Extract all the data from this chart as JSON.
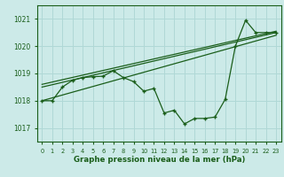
{
  "title": "Graphe pression niveau de la mer (hPa)",
  "bg_color": "#cceae8",
  "grid_color": "#b0d8d6",
  "line_color": "#1a5e1a",
  "xlim": [
    -0.5,
    23.5
  ],
  "ylim": [
    1016.5,
    1021.5
  ],
  "yticks": [
    1017,
    1018,
    1019,
    1020,
    1021
  ],
  "xticks": [
    0,
    1,
    2,
    3,
    4,
    5,
    6,
    7,
    8,
    9,
    10,
    11,
    12,
    13,
    14,
    15,
    16,
    17,
    18,
    19,
    20,
    21,
    22,
    23
  ],
  "series1_x": [
    0,
    1,
    2,
    3,
    4,
    5,
    6,
    7,
    8,
    9,
    10,
    11,
    12,
    13,
    14,
    15,
    16,
    17,
    18,
    19,
    20,
    21,
    22,
    23
  ],
  "series1_y": [
    1018.0,
    1018.0,
    1018.5,
    1018.75,
    1018.85,
    1018.88,
    1018.9,
    1019.1,
    1018.85,
    1018.7,
    1018.35,
    1018.45,
    1017.55,
    1017.65,
    1017.15,
    1017.35,
    1017.35,
    1017.4,
    1018.05,
    1020.0,
    1020.95,
    1020.5,
    1020.5,
    1020.5
  ],
  "line1_x": [
    0,
    23
  ],
  "line1_y": [
    1018.0,
    1020.4
  ],
  "line2_x": [
    0,
    23
  ],
  "line2_y": [
    1018.5,
    1020.5
  ],
  "line3_x": [
    0,
    23
  ],
  "line3_y": [
    1018.6,
    1020.55
  ]
}
